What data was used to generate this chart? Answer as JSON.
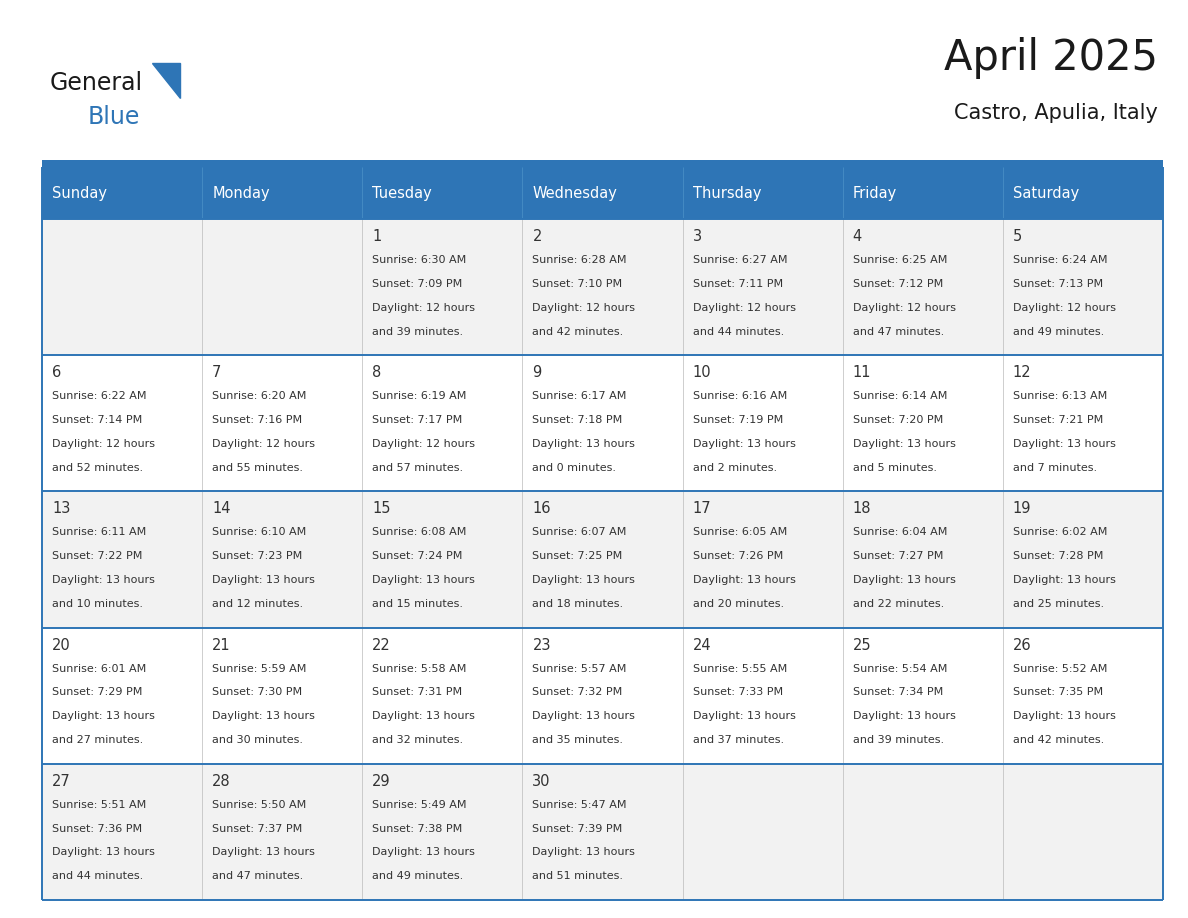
{
  "title": "April 2025",
  "subtitle": "Castro, Apulia, Italy",
  "days_of_week": [
    "Sunday",
    "Monday",
    "Tuesday",
    "Wednesday",
    "Thursday",
    "Friday",
    "Saturday"
  ],
  "header_bg": "#2E75B6",
  "header_text": "#FFFFFF",
  "row_bg": [
    "#F2F2F2",
    "#FFFFFF",
    "#F2F2F2",
    "#FFFFFF",
    "#F2F2F2"
  ],
  "cell_text_color": "#333333",
  "day_number_color": "#333333",
  "border_color": "#2E75B6",
  "thin_line_color": "#BBBBBB",
  "logo_color_general": "#1A1A1A",
  "logo_color_blue": "#2E75B6",
  "logo_text_general": "General",
  "logo_text_blue": "Blue",
  "calendar": [
    [
      {
        "day": null,
        "sunrise": null,
        "sunset": null,
        "daylight": null
      },
      {
        "day": null,
        "sunrise": null,
        "sunset": null,
        "daylight": null
      },
      {
        "day": 1,
        "sunrise": "6:30 AM",
        "sunset": "7:09 PM",
        "daylight": "12 hours\nand 39 minutes."
      },
      {
        "day": 2,
        "sunrise": "6:28 AM",
        "sunset": "7:10 PM",
        "daylight": "12 hours\nand 42 minutes."
      },
      {
        "day": 3,
        "sunrise": "6:27 AM",
        "sunset": "7:11 PM",
        "daylight": "12 hours\nand 44 minutes."
      },
      {
        "day": 4,
        "sunrise": "6:25 AM",
        "sunset": "7:12 PM",
        "daylight": "12 hours\nand 47 minutes."
      },
      {
        "day": 5,
        "sunrise": "6:24 AM",
        "sunset": "7:13 PM",
        "daylight": "12 hours\nand 49 minutes."
      }
    ],
    [
      {
        "day": 6,
        "sunrise": "6:22 AM",
        "sunset": "7:14 PM",
        "daylight": "12 hours\nand 52 minutes."
      },
      {
        "day": 7,
        "sunrise": "6:20 AM",
        "sunset": "7:16 PM",
        "daylight": "12 hours\nand 55 minutes."
      },
      {
        "day": 8,
        "sunrise": "6:19 AM",
        "sunset": "7:17 PM",
        "daylight": "12 hours\nand 57 minutes."
      },
      {
        "day": 9,
        "sunrise": "6:17 AM",
        "sunset": "7:18 PM",
        "daylight": "13 hours\nand 0 minutes."
      },
      {
        "day": 10,
        "sunrise": "6:16 AM",
        "sunset": "7:19 PM",
        "daylight": "13 hours\nand 2 minutes."
      },
      {
        "day": 11,
        "sunrise": "6:14 AM",
        "sunset": "7:20 PM",
        "daylight": "13 hours\nand 5 minutes."
      },
      {
        "day": 12,
        "sunrise": "6:13 AM",
        "sunset": "7:21 PM",
        "daylight": "13 hours\nand 7 minutes."
      }
    ],
    [
      {
        "day": 13,
        "sunrise": "6:11 AM",
        "sunset": "7:22 PM",
        "daylight": "13 hours\nand 10 minutes."
      },
      {
        "day": 14,
        "sunrise": "6:10 AM",
        "sunset": "7:23 PM",
        "daylight": "13 hours\nand 12 minutes."
      },
      {
        "day": 15,
        "sunrise": "6:08 AM",
        "sunset": "7:24 PM",
        "daylight": "13 hours\nand 15 minutes."
      },
      {
        "day": 16,
        "sunrise": "6:07 AM",
        "sunset": "7:25 PM",
        "daylight": "13 hours\nand 18 minutes."
      },
      {
        "day": 17,
        "sunrise": "6:05 AM",
        "sunset": "7:26 PM",
        "daylight": "13 hours\nand 20 minutes."
      },
      {
        "day": 18,
        "sunrise": "6:04 AM",
        "sunset": "7:27 PM",
        "daylight": "13 hours\nand 22 minutes."
      },
      {
        "day": 19,
        "sunrise": "6:02 AM",
        "sunset": "7:28 PM",
        "daylight": "13 hours\nand 25 minutes."
      }
    ],
    [
      {
        "day": 20,
        "sunrise": "6:01 AM",
        "sunset": "7:29 PM",
        "daylight": "13 hours\nand 27 minutes."
      },
      {
        "day": 21,
        "sunrise": "5:59 AM",
        "sunset": "7:30 PM",
        "daylight": "13 hours\nand 30 minutes."
      },
      {
        "day": 22,
        "sunrise": "5:58 AM",
        "sunset": "7:31 PM",
        "daylight": "13 hours\nand 32 minutes."
      },
      {
        "day": 23,
        "sunrise": "5:57 AM",
        "sunset": "7:32 PM",
        "daylight": "13 hours\nand 35 minutes."
      },
      {
        "day": 24,
        "sunrise": "5:55 AM",
        "sunset": "7:33 PM",
        "daylight": "13 hours\nand 37 minutes."
      },
      {
        "day": 25,
        "sunrise": "5:54 AM",
        "sunset": "7:34 PM",
        "daylight": "13 hours\nand 39 minutes."
      },
      {
        "day": 26,
        "sunrise": "5:52 AM",
        "sunset": "7:35 PM",
        "daylight": "13 hours\nand 42 minutes."
      }
    ],
    [
      {
        "day": 27,
        "sunrise": "5:51 AM",
        "sunset": "7:36 PM",
        "daylight": "13 hours\nand 44 minutes."
      },
      {
        "day": 28,
        "sunrise": "5:50 AM",
        "sunset": "7:37 PM",
        "daylight": "13 hours\nand 47 minutes."
      },
      {
        "day": 29,
        "sunrise": "5:49 AM",
        "sunset": "7:38 PM",
        "daylight": "13 hours\nand 49 minutes."
      },
      {
        "day": 30,
        "sunrise": "5:47 AM",
        "sunset": "7:39 PM",
        "daylight": "13 hours\nand 51 minutes."
      },
      {
        "day": null,
        "sunrise": null,
        "sunset": null,
        "daylight": null
      },
      {
        "day": null,
        "sunrise": null,
        "sunset": null,
        "daylight": null
      },
      {
        "day": null,
        "sunrise": null,
        "sunset": null,
        "daylight": null
      }
    ]
  ]
}
